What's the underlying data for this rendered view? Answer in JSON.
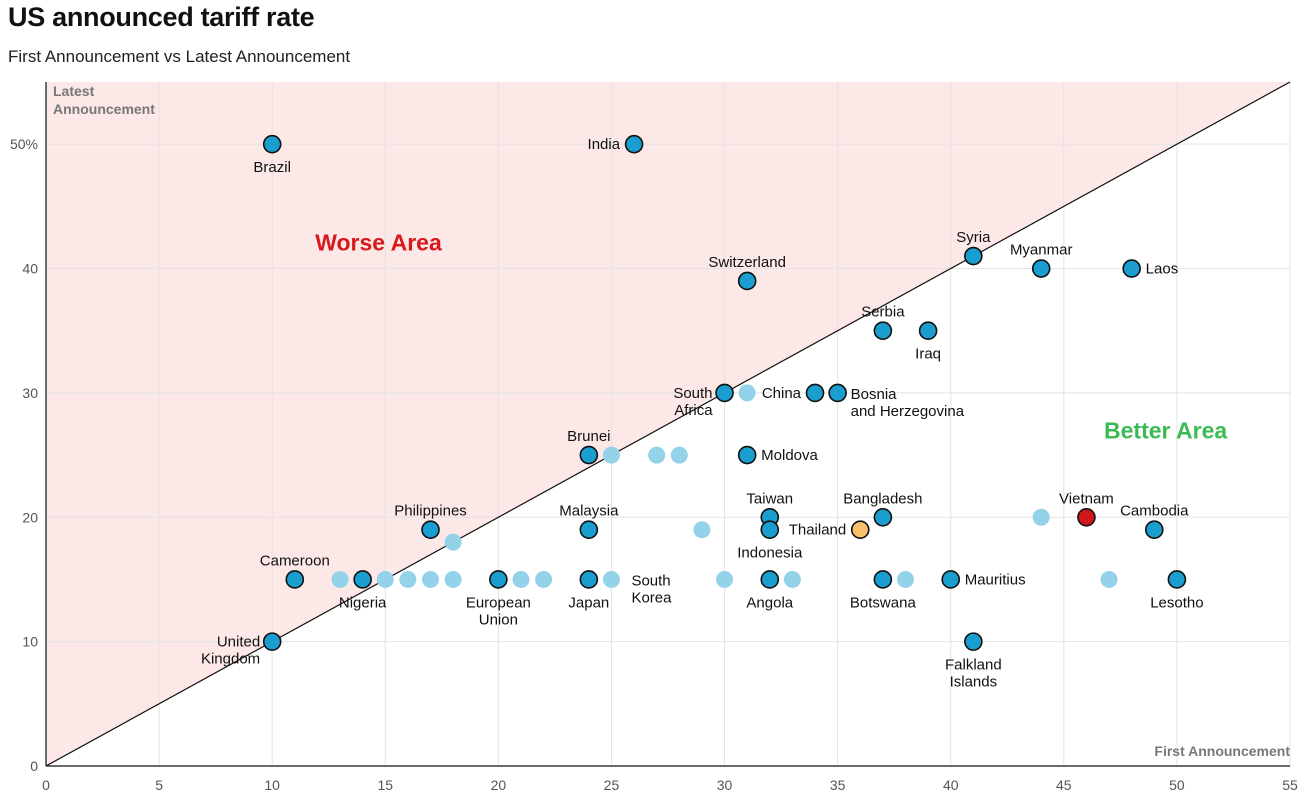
{
  "chart_data": {
    "type": "scatter",
    "title": "US announced tariff rate",
    "subtitle": "First Announcement vs Latest Announcement",
    "xlabel": "First Announcement",
    "ylabel": "Latest\nAnnouncement",
    "xlim": [
      0,
      55
    ],
    "ylim": [
      0,
      55
    ],
    "x_ticks": [
      "0",
      "5",
      "10",
      "15",
      "20",
      "25",
      "30",
      "35",
      "40",
      "45",
      "50",
      "55"
    ],
    "y_ticks": [
      "0",
      "10",
      "20",
      "30",
      "40",
      "50%"
    ],
    "grid": true,
    "regions": {
      "worse": {
        "label": "Worse Area",
        "color": "#d7191c",
        "fill": "#fde8e8"
      },
      "better": {
        "label": "Better Area",
        "color": "#3cba54"
      }
    },
    "colors": {
      "labeled": "#1a9ecf",
      "unlabeled": "#93d2e9",
      "highlight_red": "#d0181c",
      "highlight_orange": "#f7c06b",
      "diagonal": "#111111",
      "grid": "#e3e3e3"
    },
    "points": [
      {
        "x": 10,
        "y": 50,
        "label": "Brazil",
        "pos": "below"
      },
      {
        "x": 26,
        "y": 50,
        "label": "India",
        "pos": "left"
      },
      {
        "x": 31,
        "y": 39,
        "label": "Switzerland",
        "pos": "above"
      },
      {
        "x": 41,
        "y": 41,
        "label": "Syria",
        "pos": "above"
      },
      {
        "x": 44,
        "y": 40,
        "label": "Myanmar",
        "pos": "above"
      },
      {
        "x": 48,
        "y": 40,
        "label": "Laos",
        "pos": "right"
      },
      {
        "x": 37,
        "y": 35,
        "label": "Serbia",
        "pos": "above"
      },
      {
        "x": 39,
        "y": 35,
        "label": "Iraq",
        "pos": "below"
      },
      {
        "x": 30,
        "y": 30,
        "label": "South\nAfrica",
        "pos": "left2"
      },
      {
        "x": 34,
        "y": 30,
        "label": "China",
        "pos": "left"
      },
      {
        "x": 35,
        "y": 30,
        "label": "Bosnia\nand Herzegovina",
        "pos": "right2"
      },
      {
        "x": 24,
        "y": 25,
        "label": "Brunei",
        "pos": "above"
      },
      {
        "x": 31,
        "y": 25,
        "label": "Moldova",
        "pos": "right"
      },
      {
        "x": 17,
        "y": 19,
        "label": "Philippines",
        "pos": "above"
      },
      {
        "x": 24,
        "y": 19,
        "label": "Malaysia",
        "pos": "above"
      },
      {
        "x": 32,
        "y": 20,
        "label": "Taiwan",
        "pos": "above"
      },
      {
        "x": 32,
        "y": 19,
        "label": "Indonesia",
        "pos": "below"
      },
      {
        "x": 37,
        "y": 20,
        "label": "Bangladesh",
        "pos": "above"
      },
      {
        "x": 36,
        "y": 19,
        "label": "Thailand",
        "pos": "left",
        "color": "orange"
      },
      {
        "x": 46,
        "y": 20,
        "label": "Vietnam",
        "pos": "above",
        "color": "red"
      },
      {
        "x": 49,
        "y": 19,
        "label": "Cambodia",
        "pos": "above"
      },
      {
        "x": 11,
        "y": 15,
        "label": "Cameroon",
        "pos": "above"
      },
      {
        "x": 14,
        "y": 15,
        "label": "Nigeria",
        "pos": "below"
      },
      {
        "x": 20,
        "y": 15,
        "label": "European\nUnion",
        "pos": "below"
      },
      {
        "x": 24,
        "y": 15,
        "label": "Japan",
        "pos": "below"
      },
      {
        "x": 25,
        "y": 15,
        "label": "South\nKorea",
        "pos": "right2",
        "faded": true
      },
      {
        "x": 32,
        "y": 15,
        "label": "Angola",
        "pos": "below"
      },
      {
        "x": 37,
        "y": 15,
        "label": "Botswana",
        "pos": "below"
      },
      {
        "x": 40,
        "y": 15,
        "label": "Mauritius",
        "pos": "right"
      },
      {
        "x": 50,
        "y": 15,
        "label": "Lesotho",
        "pos": "below"
      },
      {
        "x": 41,
        "y": 10,
        "label": "Falkland\nIslands",
        "pos": "below"
      },
      {
        "x": 10,
        "y": 10,
        "label": "United\nKingdom",
        "pos": "left2"
      },
      {
        "x": 31,
        "y": 30,
        "faded": true
      },
      {
        "x": 25,
        "y": 25,
        "faded": true
      },
      {
        "x": 27,
        "y": 25,
        "faded": true
      },
      {
        "x": 28,
        "y": 25,
        "faded": true
      },
      {
        "x": 18,
        "y": 18,
        "faded": true
      },
      {
        "x": 29,
        "y": 19,
        "faded": true
      },
      {
        "x": 44,
        "y": 20,
        "faded": true
      },
      {
        "x": 13,
        "y": 15,
        "faded": true
      },
      {
        "x": 15,
        "y": 15,
        "faded": true
      },
      {
        "x": 16,
        "y": 15,
        "faded": true
      },
      {
        "x": 17,
        "y": 15,
        "faded": true
      },
      {
        "x": 18,
        "y": 15,
        "faded": true
      },
      {
        "x": 21,
        "y": 15,
        "faded": true
      },
      {
        "x": 22,
        "y": 15,
        "faded": true
      },
      {
        "x": 30,
        "y": 15,
        "faded": true
      },
      {
        "x": 33,
        "y": 15,
        "faded": true
      },
      {
        "x": 38,
        "y": 15,
        "faded": true
      },
      {
        "x": 47,
        "y": 15,
        "faded": true
      }
    ]
  }
}
